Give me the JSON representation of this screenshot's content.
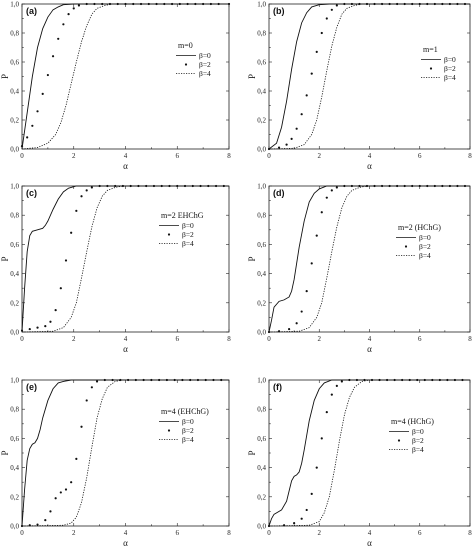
{
  "chart_data": [
    {
      "type": "line",
      "panel": "(a)",
      "legend_title": "m=0",
      "xlabel": "α",
      "ylabel": "P",
      "xlim": [
        0,
        8
      ],
      "ylim": [
        0,
        1.0
      ],
      "x_ticks": [
        "0",
        "2",
        "4",
        "6",
        "8"
      ],
      "y_ticks": [
        "0,0",
        "0,2",
        "0,4",
        "0,6",
        "0,8",
        "1,0"
      ],
      "legend_placement": "right-middle",
      "series": [
        {
          "name": "β=0",
          "style": "solid",
          "x": [
            0,
            0.2,
            0.4,
            0.6,
            0.8,
            1.0,
            1.2,
            1.4,
            1.6,
            2.0,
            2.5,
            8
          ],
          "y": [
            0,
            0.25,
            0.5,
            0.7,
            0.83,
            0.91,
            0.96,
            0.98,
            0.995,
            1.0,
            1.0,
            1.0
          ]
        },
        {
          "name": "β=2",
          "style": "dots",
          "x": [
            0,
            0.2,
            0.4,
            0.6,
            0.8,
            1.0,
            1.2,
            1.4,
            1.6,
            1.8,
            2.0,
            2.2,
            2.5,
            2.8,
            3.1,
            3.4,
            3.7,
            4.0,
            4.3,
            4.6,
            4.9,
            5.2,
            5.5,
            5.8,
            6.1,
            6.4,
            6.7,
            7.0,
            7.3,
            7.6,
            8.0
          ],
          "y": [
            0.02,
            0.08,
            0.16,
            0.26,
            0.38,
            0.51,
            0.64,
            0.76,
            0.86,
            0.93,
            0.97,
            0.99,
            1.0,
            1.0,
            1.0,
            1.0,
            1.0,
            1.0,
            1.0,
            1.0,
            1.0,
            1.0,
            1.0,
            1.0,
            1.0,
            1.0,
            1.0,
            1.0,
            1.0,
            1.0,
            1.0
          ]
        },
        {
          "name": "β=4",
          "style": "dotted",
          "x": [
            0,
            0.6,
            1.0,
            1.3,
            1.5,
            1.7,
            1.9,
            2.1,
            2.3,
            2.5,
            2.7,
            2.9,
            3.2,
            3.5,
            8
          ],
          "y": [
            0,
            0.01,
            0.04,
            0.1,
            0.18,
            0.3,
            0.45,
            0.6,
            0.74,
            0.85,
            0.93,
            0.97,
            0.99,
            1.0,
            1.0
          ]
        }
      ]
    },
    {
      "type": "line",
      "panel": "(b)",
      "legend_title": "m=1",
      "xlabel": "α",
      "ylabel": "P",
      "xlim": [
        0,
        8
      ],
      "ylim": [
        0,
        1.0
      ],
      "x_ticks": [
        "0",
        "2",
        "4",
        "6",
        "8"
      ],
      "y_ticks": [
        "0,0",
        "0,2",
        "0,4",
        "0,6",
        "0,8",
        "1,0"
      ],
      "legend_placement": "right-middle",
      "series": [
        {
          "name": "β=0",
          "style": "solid",
          "x": [
            0,
            0.3,
            0.5,
            0.7,
            0.9,
            1.1,
            1.3,
            1.5,
            1.7,
            2.0,
            2.4,
            8
          ],
          "y": [
            0,
            0.04,
            0.15,
            0.33,
            0.55,
            0.74,
            0.87,
            0.94,
            0.98,
            0.995,
            1.0,
            1.0
          ]
        },
        {
          "name": "β=2",
          "style": "dots",
          "x": [
            0,
            0.4,
            0.7,
            0.9,
            1.1,
            1.3,
            1.5,
            1.7,
            1.9,
            2.1,
            2.3,
            2.5,
            2.7,
            3.0,
            3.3,
            3.6,
            3.9,
            4.2,
            4.5,
            4.8,
            5.1,
            5.4,
            5.7,
            6.0,
            6.3,
            6.6,
            6.9,
            7.2,
            7.5,
            7.8
          ],
          "y": [
            0,
            0.01,
            0.03,
            0.07,
            0.14,
            0.24,
            0.37,
            0.52,
            0.67,
            0.8,
            0.9,
            0.96,
            0.99,
            1.0,
            1.0,
            1.0,
            1.0,
            1.0,
            1.0,
            1.0,
            1.0,
            1.0,
            1.0,
            1.0,
            1.0,
            1.0,
            1.0,
            1.0,
            1.0,
            1.0
          ]
        },
        {
          "name": "β=4",
          "style": "dotted",
          "x": [
            0,
            1.0,
            1.4,
            1.7,
            1.9,
            2.1,
            2.3,
            2.5,
            2.7,
            2.9,
            3.1,
            3.4,
            3.7,
            8
          ],
          "y": [
            0,
            0.005,
            0.03,
            0.1,
            0.2,
            0.36,
            0.54,
            0.71,
            0.84,
            0.93,
            0.97,
            0.99,
            1.0,
            1.0
          ]
        }
      ]
    },
    {
      "type": "line",
      "panel": "(c)",
      "legend_title": "m=2 EHChG",
      "xlabel": "α",
      "ylabel": "P",
      "xlim": [
        0,
        8
      ],
      "ylim": [
        0,
        1.0
      ],
      "x_ticks": [
        "0",
        "2",
        "4",
        "6",
        "8"
      ],
      "y_ticks": [
        "0,0",
        "0,2",
        "0,4",
        "0,6",
        "0,8",
        "1,0"
      ],
      "legend_placement": "right-middle",
      "series": [
        {
          "name": "β=0",
          "style": "solid",
          "x": [
            0,
            0.1,
            0.2,
            0.3,
            0.4,
            0.6,
            0.8,
            0.9,
            1.0,
            1.2,
            1.4,
            1.6,
            1.8,
            2.1,
            2.5,
            8
          ],
          "y": [
            0,
            0.3,
            0.55,
            0.66,
            0.69,
            0.7,
            0.71,
            0.73,
            0.76,
            0.84,
            0.91,
            0.96,
            0.985,
            1.0,
            1.0,
            1.0
          ]
        },
        {
          "name": "β=2",
          "style": "dots",
          "x": [
            0,
            0.3,
            0.6,
            0.9,
            1.1,
            1.3,
            1.5,
            1.7,
            1.9,
            2.1,
            2.3,
            2.5,
            2.7,
            3.0,
            3.3,
            3.6,
            3.9,
            4.2,
            4.5,
            4.8,
            5.1,
            5.4,
            5.7,
            6.0,
            6.3,
            6.6,
            6.9,
            7.2,
            7.5,
            7.8
          ],
          "y": [
            0.01,
            0.02,
            0.03,
            0.04,
            0.07,
            0.15,
            0.3,
            0.49,
            0.68,
            0.83,
            0.93,
            0.97,
            0.99,
            1.0,
            1.0,
            1.0,
            1.0,
            1.0,
            1.0,
            1.0,
            1.0,
            1.0,
            1.0,
            1.0,
            1.0,
            1.0,
            1.0,
            1.0,
            1.0,
            1.0
          ]
        },
        {
          "name": "β=4",
          "style": "dotted",
          "x": [
            0,
            1.2,
            1.6,
            1.9,
            2.1,
            2.3,
            2.5,
            2.7,
            2.9,
            3.1,
            3.3,
            3.6,
            3.9,
            8
          ],
          "y": [
            0,
            0.005,
            0.03,
            0.1,
            0.2,
            0.37,
            0.55,
            0.72,
            0.85,
            0.93,
            0.97,
            0.99,
            1.0,
            1.0
          ]
        }
      ]
    },
    {
      "type": "line",
      "panel": "(d)",
      "legend_title": "m=2 (HChG)",
      "xlabel": "α",
      "ylabel": "P",
      "xlim": [
        0,
        8
      ],
      "ylim": [
        0,
        1.0
      ],
      "x_ticks": [
        "0",
        "2",
        "4",
        "6",
        "8"
      ],
      "y_ticks": [
        "0,0",
        "0,2",
        "0,4",
        "0,6",
        "0,8",
        "1,0"
      ],
      "legend_placement": "right-middle",
      "series": [
        {
          "name": "β=0",
          "style": "solid",
          "x": [
            0,
            0.1,
            0.2,
            0.4,
            0.6,
            0.8,
            0.9,
            1.0,
            1.1,
            1.2,
            1.4,
            1.6,
            1.8,
            2.0,
            2.3,
            2.7,
            8
          ],
          "y": [
            0,
            0.08,
            0.17,
            0.21,
            0.22,
            0.24,
            0.28,
            0.36,
            0.47,
            0.58,
            0.76,
            0.89,
            0.95,
            0.98,
            1.0,
            1.0,
            1.0
          ]
        },
        {
          "name": "β=2",
          "style": "dots",
          "x": [
            0,
            0.4,
            0.8,
            1.1,
            1.3,
            1.5,
            1.7,
            1.9,
            2.1,
            2.3,
            2.5,
            2.7,
            3.0,
            3.3,
            3.6,
            3.9,
            4.2,
            4.5,
            4.8,
            5.1,
            5.4,
            5.7,
            6.0,
            6.3,
            6.6,
            6.9,
            7.2,
            7.5,
            7.8
          ],
          "y": [
            0,
            0.005,
            0.02,
            0.06,
            0.14,
            0.28,
            0.47,
            0.66,
            0.82,
            0.92,
            0.97,
            0.99,
            1.0,
            1.0,
            1.0,
            1.0,
            1.0,
            1.0,
            1.0,
            1.0,
            1.0,
            1.0,
            1.0,
            1.0,
            1.0,
            1.0,
            1.0,
            1.0,
            1.0
          ]
        },
        {
          "name": "β=4",
          "style": "dotted",
          "x": [
            0,
            1.2,
            1.6,
            1.9,
            2.1,
            2.3,
            2.5,
            2.7,
            2.9,
            3.1,
            3.3,
            3.6,
            3.9,
            8
          ],
          "y": [
            0,
            0.005,
            0.03,
            0.1,
            0.2,
            0.37,
            0.55,
            0.72,
            0.85,
            0.93,
            0.97,
            0.99,
            1.0,
            1.0
          ]
        }
      ]
    },
    {
      "type": "line",
      "panel": "(e)",
      "legend_title": "m=4 (EHChG)",
      "xlabel": "α",
      "ylabel": "P",
      "xlim": [
        0,
        8
      ],
      "ylim": [
        0,
        1.0
      ],
      "x_ticks": [
        "0",
        "2",
        "4",
        "6",
        "8"
      ],
      "y_ticks": [
        "0,0",
        "0,2",
        "0,4",
        "0,6",
        "0,8",
        "1,0"
      ],
      "legend_placement": "right-middle",
      "series": [
        {
          "name": "β=0",
          "style": "solid",
          "x": [
            0,
            0.1,
            0.2,
            0.3,
            0.4,
            0.5,
            0.6,
            0.7,
            0.8,
            1.0,
            1.2,
            1.4,
            1.6,
            1.9,
            2.3,
            8
          ],
          "y": [
            0,
            0.25,
            0.45,
            0.53,
            0.56,
            0.57,
            0.6,
            0.66,
            0.74,
            0.86,
            0.94,
            0.98,
            0.99,
            1.0,
            1.0,
            1.0
          ]
        },
        {
          "name": "β=2",
          "style": "dots",
          "x": [
            0,
            0.3,
            0.6,
            0.9,
            1.1,
            1.3,
            1.5,
            1.7,
            1.9,
            2.1,
            2.3,
            2.5,
            2.7,
            2.9,
            3.2,
            3.5,
            3.8,
            4.1,
            4.4,
            4.7,
            5.0,
            5.3,
            5.6,
            5.9,
            6.2,
            6.5,
            6.8,
            7.1,
            7.4,
            7.7
          ],
          "y": [
            0,
            0.005,
            0.01,
            0.04,
            0.1,
            0.19,
            0.23,
            0.25,
            0.3,
            0.46,
            0.68,
            0.86,
            0.95,
            0.99,
            1.0,
            1.0,
            1.0,
            1.0,
            1.0,
            1.0,
            1.0,
            1.0,
            1.0,
            1.0,
            1.0,
            1.0,
            1.0,
            1.0,
            1.0,
            1.0
          ]
        },
        {
          "name": "β=4",
          "style": "dotted",
          "x": [
            0,
            1.6,
            1.9,
            2.1,
            2.3,
            2.5,
            2.7,
            2.9,
            3.1,
            3.3,
            3.6,
            3.9,
            8
          ],
          "y": [
            0,
            0.005,
            0.02,
            0.06,
            0.16,
            0.33,
            0.54,
            0.74,
            0.87,
            0.95,
            0.99,
            1.0,
            1.0
          ]
        }
      ]
    },
    {
      "type": "line",
      "panel": "(f)",
      "legend_title": "m=4 (HChG)",
      "xlabel": "α",
      "ylabel": "P",
      "xlim": [
        0,
        8
      ],
      "ylim": [
        0,
        1.0
      ],
      "x_ticks": [
        "0",
        "2",
        "4",
        "6",
        "8"
      ],
      "y_ticks": [
        "0,0",
        "0,2",
        "0,4",
        "0,6",
        "0,8",
        "1,0"
      ],
      "legend_placement": "right-middle",
      "series": [
        {
          "name": "β=0",
          "style": "solid",
          "x": [
            0,
            0.1,
            0.2,
            0.3,
            0.5,
            0.7,
            0.8,
            0.9,
            1.0,
            1.1,
            1.2,
            1.3,
            1.4,
            1.6,
            1.8,
            2.0,
            2.2,
            2.5,
            2.9,
            8
          ],
          "y": [
            0,
            0.05,
            0.08,
            0.09,
            0.11,
            0.17,
            0.24,
            0.31,
            0.34,
            0.35,
            0.37,
            0.43,
            0.52,
            0.72,
            0.86,
            0.94,
            0.98,
            1.0,
            1.0,
            1.0
          ]
        },
        {
          "name": "β=2",
          "style": "dots",
          "x": [
            0,
            0.6,
            1.0,
            1.3,
            1.5,
            1.7,
            1.9,
            2.1,
            2.3,
            2.5,
            2.7,
            2.9,
            3.2,
            3.5,
            3.8,
            4.1,
            4.4,
            4.7,
            5.0,
            5.3,
            5.6,
            5.9,
            6.2,
            6.5,
            6.8,
            7.1,
            7.4,
            7.7
          ],
          "y": [
            0,
            0.005,
            0.02,
            0.05,
            0.11,
            0.22,
            0.4,
            0.6,
            0.78,
            0.9,
            0.96,
            0.99,
            1.0,
            1.0,
            1.0,
            1.0,
            1.0,
            1.0,
            1.0,
            1.0,
            1.0,
            1.0,
            1.0,
            1.0,
            1.0,
            1.0,
            1.0,
            1.0
          ]
        },
        {
          "name": "β=4",
          "style": "dotted",
          "x": [
            0,
            1.6,
            2.0,
            2.2,
            2.4,
            2.6,
            2.8,
            3.0,
            3.2,
            3.4,
            3.7,
            4.0,
            8
          ],
          "y": [
            0,
            0.005,
            0.03,
            0.09,
            0.2,
            0.38,
            0.58,
            0.76,
            0.88,
            0.95,
            0.99,
            1.0,
            1.0
          ]
        }
      ]
    }
  ]
}
